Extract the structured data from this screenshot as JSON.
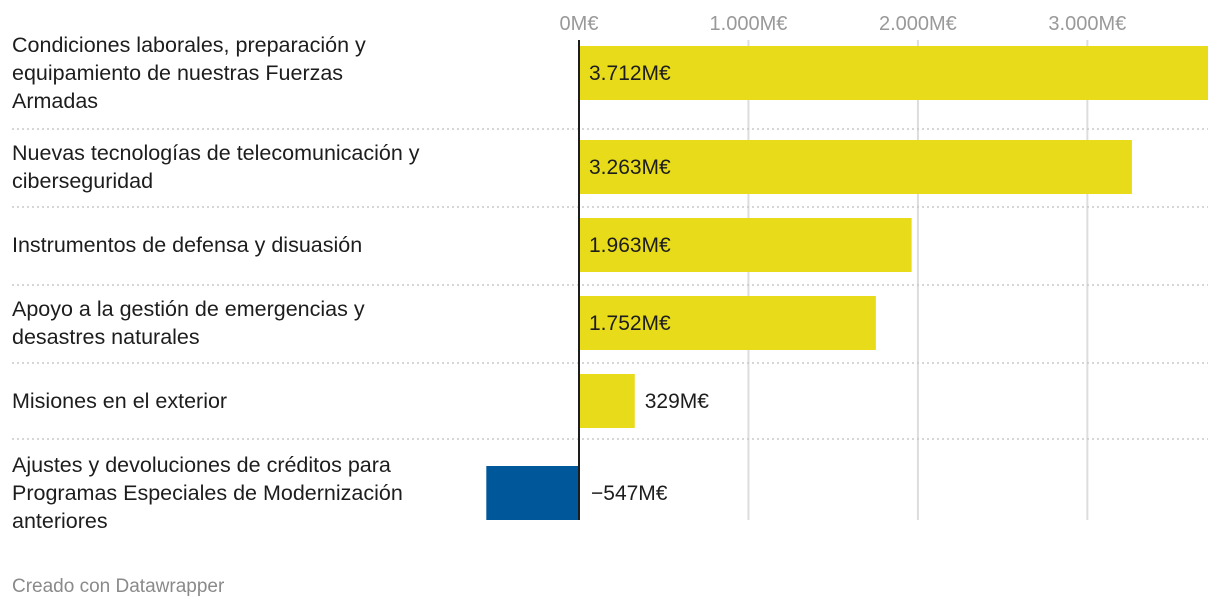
{
  "chart_data": {
    "type": "bar",
    "orientation": "horizontal",
    "unit_suffix": "M€",
    "categories": [
      "Condiciones laborales, preparación y equipamiento de nuestras Fuerzas Armadas",
      "Nuevas tecnologías de telecomunicación y ciberseguridad",
      "Instrumentos de defensa y disuasión",
      "Apoyo a la gestión de emergencias y desastres naturales",
      "Misiones en el exterior",
      "Ajustes y devoluciones de créditos para Programas Especiales de Modernización anteriores"
    ],
    "category_lines": [
      [
        "Condiciones laborales, preparación y",
        "equipamiento de nuestras Fuerzas",
        "Armadas"
      ],
      [
        "Nuevas tecnologías de telecomunicación y",
        "ciberseguridad"
      ],
      [
        "Instrumentos de defensa y disuasión"
      ],
      [
        "Apoyo a la gestión de emergencias y",
        "desastres naturales"
      ],
      [
        "Misiones en el exterior"
      ],
      [
        "Ajustes y devoluciones de créditos para",
        "Programas Especiales de Modernización",
        "anteriores"
      ]
    ],
    "values": [
      3712,
      3263,
      1963,
      1752,
      329,
      -547
    ],
    "value_labels": [
      "3.712M€",
      "3.263M€",
      "1.963M€",
      "1.752M€",
      "329M€",
      "−547M€"
    ],
    "x_ticks": [
      0,
      1000,
      2000,
      3000
    ],
    "x_tick_labels": [
      "0M€",
      "1.000M€",
      "2.000M€",
      "3.000M€"
    ],
    "xlim": [
      -547,
      3712
    ],
    "colors": {
      "positive": "#e8dc1a",
      "negative": "#00579a",
      "grid": "#dddddd",
      "axis": "#1d1d1d",
      "separator": "#c8c8c8"
    }
  },
  "footer": {
    "credit": "Creado con Datawrapper"
  }
}
